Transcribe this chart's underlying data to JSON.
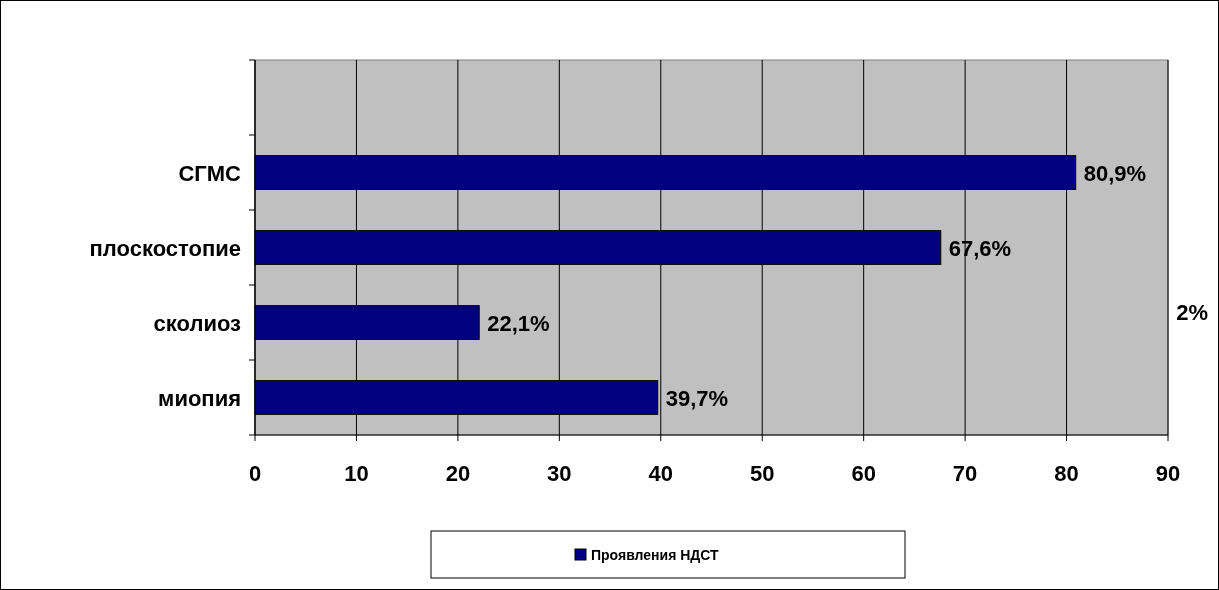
{
  "chart_data": {
    "type": "bar",
    "orientation": "horizontal",
    "categories": [
      null,
      "СГМС",
      "плоскостопие",
      "сколиоз",
      "миопия"
    ],
    "series": [
      {
        "name": "Проявления НДСТ",
        "color": "#000080",
        "values": [
          null,
          80.9,
          67.6,
          22.1,
          39.7
        ],
        "value_labels": [
          null,
          "80,9%",
          "67,6%",
          "22,1%",
          "39,7%"
        ]
      }
    ],
    "xlim": [
      0,
      90
    ],
    "xticks": [
      0,
      10,
      20,
      30,
      40,
      50,
      60,
      70,
      80,
      90
    ],
    "grid": "x",
    "legend": "bottom",
    "annotations": [
      "2%"
    ]
  }
}
